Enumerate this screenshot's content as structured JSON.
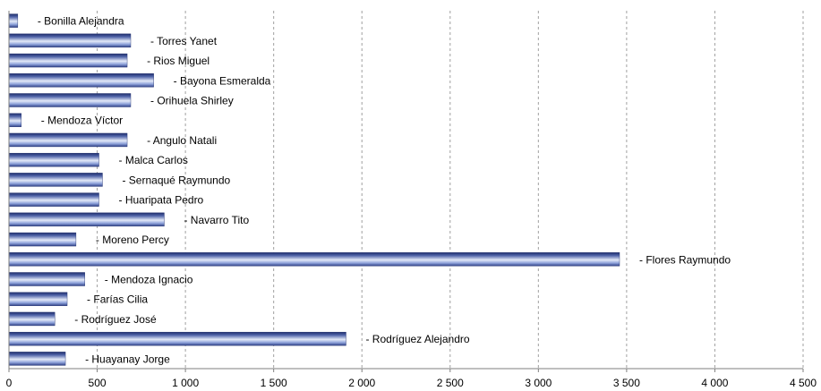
{
  "chart_data": {
    "type": "bar",
    "orientation": "horizontal",
    "xlim": [
      0,
      4500
    ],
    "xticks": [
      "0",
      "500",
      "1 000",
      "1 500",
      "2 000",
      "2 500",
      "3 000",
      "3 500",
      "4 000",
      "4 500"
    ],
    "grid": "vertical dashed",
    "legend": "none",
    "colors": {
      "bar_dark": "#1F2D6B",
      "bar_mid": "#8FA3DB",
      "bar_light": "#E4EAF8",
      "grid": "#A0A0A0",
      "axis": "#7F7F7F"
    },
    "categories": [
      "Bonilla Alejandra",
      "Torres Yanet",
      "Rios Miguel",
      "Bayona Esmeralda",
      "Orihuela Shirley",
      "Mendoza Víctor",
      "Angulo Natali",
      "Malca Carlos",
      "Sernaqué Raymundo",
      "Huaripata Pedro",
      "Navarro Tito",
      "Moreno Percy",
      "Flores Raymundo",
      "Mendoza Ignacio",
      "Farías Cilia",
      "Rodríguez José",
      "Rodríguez Alejandro",
      "Huayanay Jorge"
    ],
    "labels": [
      "- Bonilla Alejandra",
      "- Torres Yanet",
      "- Rios Miguel",
      "- Bayona Esmeralda",
      "- Orihuela Shirley",
      "- Mendoza Víctor",
      "- Angulo Natali",
      "- Malca Carlos",
      "- Sernaqué Raymundo",
      "- Huaripata Pedro",
      "- Navarro Tito",
      "- Moreno Percy",
      "- Flores Raymundo",
      "- Mendoza Ignacio",
      "- Farías Cilia",
      "- Rodríguez José",
      "- Rodríguez Alejandro",
      "- Huayanay Jorge"
    ],
    "values": [
      50,
      690,
      670,
      820,
      690,
      70,
      670,
      510,
      530,
      510,
      880,
      380,
      3460,
      430,
      330,
      260,
      1910,
      320
    ]
  }
}
